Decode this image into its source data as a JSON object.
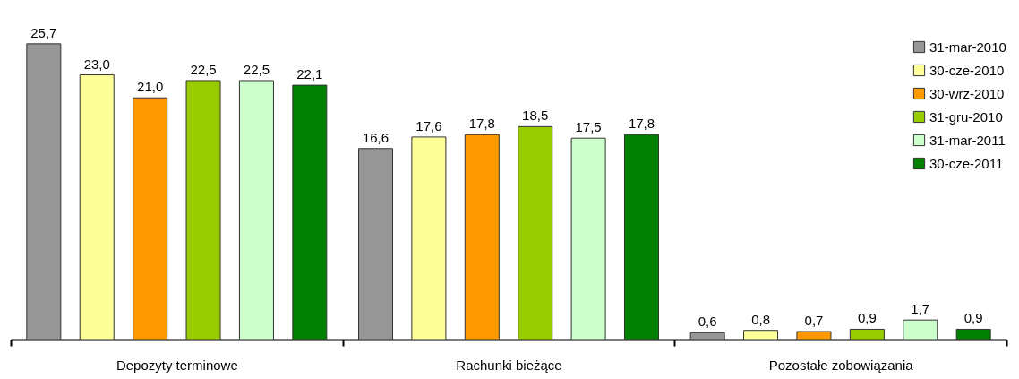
{
  "chart_data": {
    "type": "bar",
    "categories": [
      "Depozyty terminowe",
      "Rachunki bieżące",
      "Pozostałe zobowiązania"
    ],
    "series": [
      {
        "name": "31-mar-2010",
        "color": "#969696",
        "values": [
          25.7,
          16.6,
          0.6
        ],
        "value_labels": [
          "25,7",
          "16,6",
          "0,6"
        ]
      },
      {
        "name": "30-cze-2010",
        "color": "#ffff99",
        "values": [
          23.0,
          17.6,
          0.8
        ],
        "value_labels": [
          "23,0",
          "17,6",
          "0,8"
        ]
      },
      {
        "name": "30-wrz-2010",
        "color": "#ff9900",
        "values": [
          21.0,
          17.8,
          0.7
        ],
        "value_labels": [
          "21,0",
          "17,8",
          "0,7"
        ]
      },
      {
        "name": "31-gru-2010",
        "color": "#99cc00",
        "values": [
          22.5,
          18.5,
          0.9
        ],
        "value_labels": [
          "22,5",
          "18,5",
          "0,9"
        ]
      },
      {
        "name": "31-mar-2011",
        "color": "#ccffcc",
        "values": [
          22.5,
          17.5,
          1.7
        ],
        "value_labels": [
          "22,5",
          "17,5",
          "1,7"
        ]
      },
      {
        "name": "30-cze-2011",
        "color": "#008000",
        "values": [
          22.1,
          17.8,
          0.9
        ],
        "value_labels": [
          "22,1",
          "17,8",
          "0,9"
        ]
      }
    ],
    "legend": "top right"
  }
}
